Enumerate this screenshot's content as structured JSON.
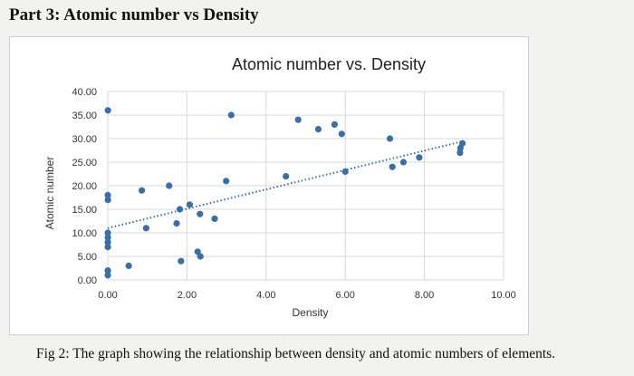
{
  "page": {
    "heading": "Part 3: Atomic number vs Density",
    "caption": "Fig 2: The graph showing the relationship between density and atomic numbers of elements."
  },
  "chart_data": {
    "type": "scatter",
    "title": "Atomic number vs. Density",
    "xlabel": "Density",
    "ylabel": "Atomic number",
    "xlim": [
      0,
      10
    ],
    "ylim": [
      0,
      40
    ],
    "xticks": [
      "0.00",
      "2.00",
      "4.00",
      "6.00",
      "8.00",
      "10.00"
    ],
    "yticks": [
      "0.00",
      "5.00",
      "10.00",
      "15.00",
      "20.00",
      "25.00",
      "30.00",
      "35.00",
      "40.00"
    ],
    "grid": true,
    "marker_color": "#3a6ea5",
    "trendline": {
      "type": "linear",
      "style": "dotted",
      "color": "#3a6ea5",
      "x": [
        0,
        9
      ],
      "y": [
        11,
        29.5
      ]
    },
    "points": [
      [
        0.0001,
        1
      ],
      [
        0.0002,
        2
      ],
      [
        0.53,
        3
      ],
      [
        1.85,
        4
      ],
      [
        2.34,
        5
      ],
      [
        2.27,
        6
      ],
      [
        0.0013,
        7
      ],
      [
        0.0014,
        8
      ],
      [
        0.0017,
        9
      ],
      [
        0.0009,
        10
      ],
      [
        0.97,
        11
      ],
      [
        1.74,
        12
      ],
      [
        2.7,
        13
      ],
      [
        2.33,
        14
      ],
      [
        1.82,
        15
      ],
      [
        2.07,
        16
      ],
      [
        0.0032,
        17
      ],
      [
        0.0018,
        18
      ],
      [
        0.86,
        19
      ],
      [
        1.55,
        20
      ],
      [
        2.99,
        21
      ],
      [
        4.5,
        22
      ],
      [
        6.0,
        23
      ],
      [
        7.19,
        24
      ],
      [
        7.47,
        25
      ],
      [
        7.87,
        26
      ],
      [
        8.9,
        27
      ],
      [
        8.91,
        28
      ],
      [
        8.96,
        29
      ],
      [
        7.13,
        30
      ],
      [
        5.91,
        31
      ],
      [
        5.32,
        32
      ],
      [
        5.73,
        33
      ],
      [
        4.81,
        34
      ],
      [
        3.12,
        35
      ],
      [
        0.0037,
        36
      ]
    ]
  }
}
